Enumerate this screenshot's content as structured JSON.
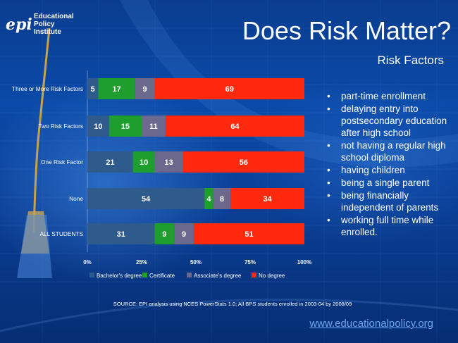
{
  "header": {
    "logo_mark": "epi",
    "logo_lines": [
      "Educational",
      "Policy",
      "Institute"
    ],
    "title": "Does Risk Matter?",
    "subtitle": "Risk Factors"
  },
  "risk_factors": [
    "part-time enrollment",
    "delaying entry into postsecondary education after high school",
    "not having a regular high school diploma",
    "having children",
    "being a single parent",
    "being financially independent of parents",
    "working full time while enrolled."
  ],
  "footer": {
    "source": "SOURCE: EPI analysis using NCES PowerStats 1.0; All BPS students enrolled in 2003-04 by 2008/09",
    "website": "www.educationalpolicy.org"
  },
  "colors": {
    "bachelors": "#2e5a8c",
    "certificate": "#1e9e2c",
    "associates": "#6b6a8e",
    "no_degree": "#ff2a0e"
  },
  "chart_data": {
    "type": "bar",
    "orientation": "horizontal",
    "stacked": true,
    "percent": true,
    "categories": [
      "Three or More Risk Factors",
      "Two Risk Factors",
      "One Risk Factor",
      "None",
      "ALL STUDENTS"
    ],
    "series": [
      {
        "name": "Bachelor's degree",
        "values": [
          5,
          10,
          21,
          54,
          31
        ]
      },
      {
        "name": "Certificate",
        "values": [
          17,
          15,
          10,
          4,
          9
        ]
      },
      {
        "name": "Associate's degree",
        "values": [
          9,
          11,
          13,
          8,
          9
        ]
      },
      {
        "name": "No degree",
        "values": [
          69,
          64,
          56,
          34,
          51
        ]
      }
    ],
    "xticks": [
      "0%",
      "25%",
      "50%",
      "75%",
      "100%"
    ],
    "xlim": [
      0,
      100
    ],
    "legend_position": "bottom"
  }
}
